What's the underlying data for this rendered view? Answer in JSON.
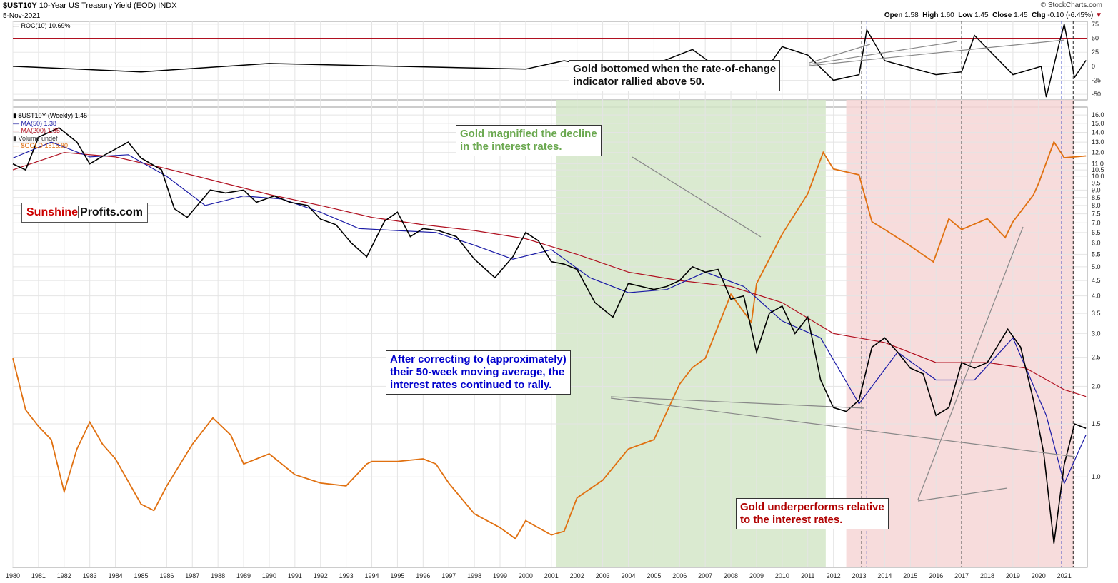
{
  "header": {
    "symbol": "$UST10Y",
    "description": "10-Year US Treasury Yield (EOD) INDX",
    "date": "5-Nov-2021",
    "source": "© StockCharts.com",
    "ohlc": {
      "open_label": "Open",
      "open": "1.58",
      "high_label": "High",
      "high": "1.60",
      "low_label": "Low",
      "low": "1.45",
      "close_label": "Close",
      "close": "1.45",
      "chg_label": "Chg",
      "chg": "-0.10 (-6.45%)"
    }
  },
  "roc_panel": {
    "label": "ROC(10) 10.69%",
    "ticks": [
      "75",
      "50",
      "25",
      "0",
      "-25",
      "-50"
    ]
  },
  "main_legend": {
    "price": "$UST10Y (Weekly) 1.45",
    "ma50": "MA(50) 1.38",
    "ma200": "MA(200) 1.85",
    "volume": "Volume undef",
    "gold": "$GOLD 1816.80"
  },
  "logo": {
    "part1": "Sunshine",
    "part2": "Profits.com"
  },
  "callouts": {
    "roc": [
      "Gold bottomed when the rate-of-change",
      "indicator rallied above 50."
    ],
    "green": [
      "Gold magnified the decline",
      "in the interest rates."
    ],
    "blue": [
      "After correcting to (approximately)",
      "their 50-week moving average, the",
      "interest rates continued to rally."
    ],
    "red": [
      "Gold underperforms relative",
      "to the interest rates."
    ]
  },
  "colors": {
    "price": "#000000",
    "ma50": "#1a1aa6",
    "ma200": "#b01020",
    "gold": "#e07010",
    "green_zone": "#d4e6c8",
    "red_zone": "#f6d6d6",
    "roc_threshold": "#b01020",
    "callout_green": "#6aa84f",
    "callout_blue": "#0000cc",
    "callout_red": "#b00000"
  },
  "chart_data": {
    "type": "line",
    "x_ticks": [
      "1980",
      "1981",
      "1982",
      "1983",
      "1984",
      "1985",
      "1986",
      "1987",
      "1988",
      "1989",
      "1990",
      "1991",
      "1992",
      "1993",
      "1994",
      "1995",
      "1996",
      "1997",
      "1998",
      "1999",
      "2000",
      "2001",
      "2002",
      "2003",
      "2004",
      "2005",
      "2006",
      "2007",
      "2008",
      "2009",
      "2010",
      "2011",
      "2012",
      "2013",
      "2014",
      "2015",
      "2016",
      "2017",
      "2018",
      "2019",
      "2020",
      "2021"
    ],
    "y_scale": "log",
    "y_ticks": [
      "16.0",
      "15.0",
      "14.0",
      "13.0",
      "12.0",
      "11.0",
      "10.5",
      "10.0",
      "9.5",
      "9.0",
      "8.5",
      "8.0",
      "7.5",
      "7.0",
      "6.5",
      "6.0",
      "5.5",
      "5.0",
      "4.5",
      "4.0",
      "3.5",
      "3.0",
      "2.5",
      "2.0",
      "1.5",
      "1.0"
    ],
    "y_tick_values": [
      16,
      15,
      14,
      13,
      12,
      11,
      10.5,
      10,
      9.5,
      9,
      8.5,
      8,
      7.5,
      7,
      6.5,
      6,
      5.5,
      5,
      4.5,
      4,
      3.5,
      3,
      2.5,
      2,
      1.5,
      1
    ],
    "ylim": [
      0.5,
      17
    ],
    "xlim": [
      1980,
      2021.9
    ],
    "shaded_regions": [
      {
        "from": 2001.2,
        "to": 2011.7,
        "label": "green"
      },
      {
        "from": 2012.5,
        "to": 2021.4,
        "label": "red"
      }
    ],
    "vertical_markers": [
      2013.1,
      2013.3,
      2017.0,
      2020.9,
      2021.35
    ],
    "series": [
      {
        "name": "$UST10Y (Weekly)",
        "x": [
          1980,
          1980.5,
          1981,
          1981.8,
          1982.5,
          1983,
          1983.6,
          1984.5,
          1985,
          1985.8,
          1986.3,
          1986.8,
          1987.7,
          1988.3,
          1989,
          1989.5,
          1990.2,
          1990.8,
          1991.5,
          1992,
          1992.6,
          1993.2,
          1993.8,
          1994.5,
          1995,
          1995.5,
          1996,
          1996.6,
          1997.3,
          1998,
          1998.8,
          1999.5,
          2000,
          2000.5,
          2001,
          2001.5,
          2002,
          2002.7,
          2003.4,
          2004,
          2004.5,
          2005,
          2005.5,
          2006,
          2006.5,
          2007,
          2007.5,
          2008,
          2008.5,
          2009,
          2009.5,
          2010,
          2010.5,
          2011,
          2011.5,
          2012,
          2012.5,
          2013,
          2013.5,
          2014,
          2014.5,
          2015,
          2015.5,
          2016,
          2016.5,
          2017,
          2017.5,
          2018,
          2018.8,
          2019.3,
          2019.8,
          2020.2,
          2020.6,
          2021,
          2021.4,
          2021.85
        ],
        "values": [
          11,
          10.5,
          13.5,
          14.5,
          13,
          11,
          11.8,
          13,
          11.5,
          10.5,
          7.8,
          7.3,
          9,
          8.8,
          9,
          8.2,
          8.6,
          8.2,
          8,
          7.2,
          6.9,
          6,
          5.4,
          7.1,
          7.6,
          6.3,
          6.7,
          6.6,
          6.3,
          5.3,
          4.6,
          5.4,
          6.5,
          6.1,
          5.2,
          5.1,
          4.9,
          3.8,
          3.4,
          4.4,
          4.3,
          4.2,
          4.3,
          4.5,
          5.0,
          4.8,
          4.9,
          3.9,
          4.0,
          2.6,
          3.5,
          3.7,
          3.0,
          3.4,
          2.1,
          1.7,
          1.65,
          1.8,
          2.7,
          2.9,
          2.6,
          2.3,
          2.2,
          1.6,
          1.7,
          2.4,
          2.3,
          2.4,
          3.1,
          2.7,
          1.8,
          1.2,
          0.6,
          1.1,
          1.5,
          1.45
        ]
      },
      {
        "name": "MA(50)",
        "x": [
          1980,
          1981.5,
          1983,
          1984.5,
          1986,
          1987.5,
          1989,
          1990.5,
          1992,
          1993.5,
          1995,
          1996.5,
          1998,
          1999.5,
          2001,
          2002.5,
          2004,
          2005.5,
          2007,
          2008.5,
          2010,
          2011.5,
          2013,
          2014.5,
          2016,
          2017.5,
          2019,
          2020.3,
          2021,
          2021.85
        ],
        "values": [
          11.5,
          13,
          11.6,
          11.8,
          10,
          8,
          8.6,
          8.4,
          7.6,
          6.7,
          6.6,
          6.5,
          5.9,
          5.3,
          5.7,
          4.6,
          4.1,
          4.2,
          4.8,
          4.3,
          3.3,
          2.9,
          1.75,
          2.6,
          2.1,
          2.1,
          2.9,
          1.6,
          0.95,
          1.38
        ]
      },
      {
        "name": "MA(200)",
        "x": [
          1980,
          1982,
          1984,
          1986,
          1988,
          1990,
          1992,
          1994,
          1996,
          1998,
          2000,
          2002,
          2004,
          2006,
          2008,
          2010,
          2012,
          2014,
          2016,
          2018,
          2019.5,
          2021,
          2021.85
        ],
        "values": [
          10.5,
          12,
          11.6,
          10.6,
          9.6,
          8.7,
          8,
          7.3,
          6.9,
          6.6,
          6.2,
          5.5,
          4.8,
          4.5,
          4.3,
          3.8,
          3.0,
          2.8,
          2.4,
          2.4,
          2.3,
          1.95,
          1.85
        ]
      },
      {
        "name": "$GOLD",
        "x": [
          1980,
          1980.5,
          1981,
          1981.5,
          1982,
          1982.5,
          1983,
          1983.5,
          1984,
          1985,
          1985.5,
          1986,
          1987,
          1987.8,
          1988.5,
          1989,
          1990,
          1991,
          1992,
          1993,
          1993.8,
          1994,
          1995,
          1996,
          1996.5,
          1997,
          1998,
          1999,
          1999.6,
          2000,
          2001,
          2001.5,
          2002,
          2003,
          2004,
          2005,
          2006,
          2006.5,
          2007,
          2008,
          2008.8,
          2009,
          2010,
          2011,
          2011.6,
          2012,
          2013,
          2013.5,
          2014,
          2015,
          2015.9,
          2016.5,
          2017,
          2018,
          2018.7,
          2019,
          2019.8,
          2020,
          2020.6,
          2021,
          2021.85
        ],
        "values": [
          650,
          500,
          460,
          430,
          330,
          410,
          470,
          420,
          390,
          310,
          300,
          340,
          420,
          480,
          440,
          380,
          400,
          360,
          345,
          340,
          380,
          385,
          385,
          390,
          380,
          345,
          295,
          275,
          260,
          285,
          265,
          270,
          320,
          350,
          410,
          430,
          570,
          620,
          650,
          900,
          780,
          950,
          1220,
          1500,
          1850,
          1700,
          1650,
          1300,
          1250,
          1150,
          1060,
          1320,
          1250,
          1320,
          1200,
          1300,
          1490,
          1580,
          1950,
          1800,
          1816.8
        ]
      }
    ],
    "gold_scale_ticks": [
      300,
      500,
      700,
      1000,
      1500,
      2000
    ],
    "roc_series": {
      "name": "ROC(10)",
      "ylim": [
        -60,
        80
      ],
      "threshold": 50,
      "x": [
        1980,
        1985,
        1990,
        1995,
        2000,
        2001.5,
        2004,
        2006.5,
        2008,
        2009,
        2010,
        2011,
        2012,
        2013,
        2013.3,
        2014,
        2016,
        2017,
        2017.5,
        2019,
        2020.1,
        2020.3,
        2020.8,
        2021,
        2021.4,
        2021.85
      ],
      "values": [
        0,
        -10,
        5,
        0,
        -5,
        10,
        -15,
        30,
        -20,
        -30,
        35,
        20,
        -25,
        -15,
        65,
        10,
        -15,
        -10,
        55,
        -15,
        0,
        -55,
        40,
        75,
        -20,
        10.69
      ]
    }
  }
}
